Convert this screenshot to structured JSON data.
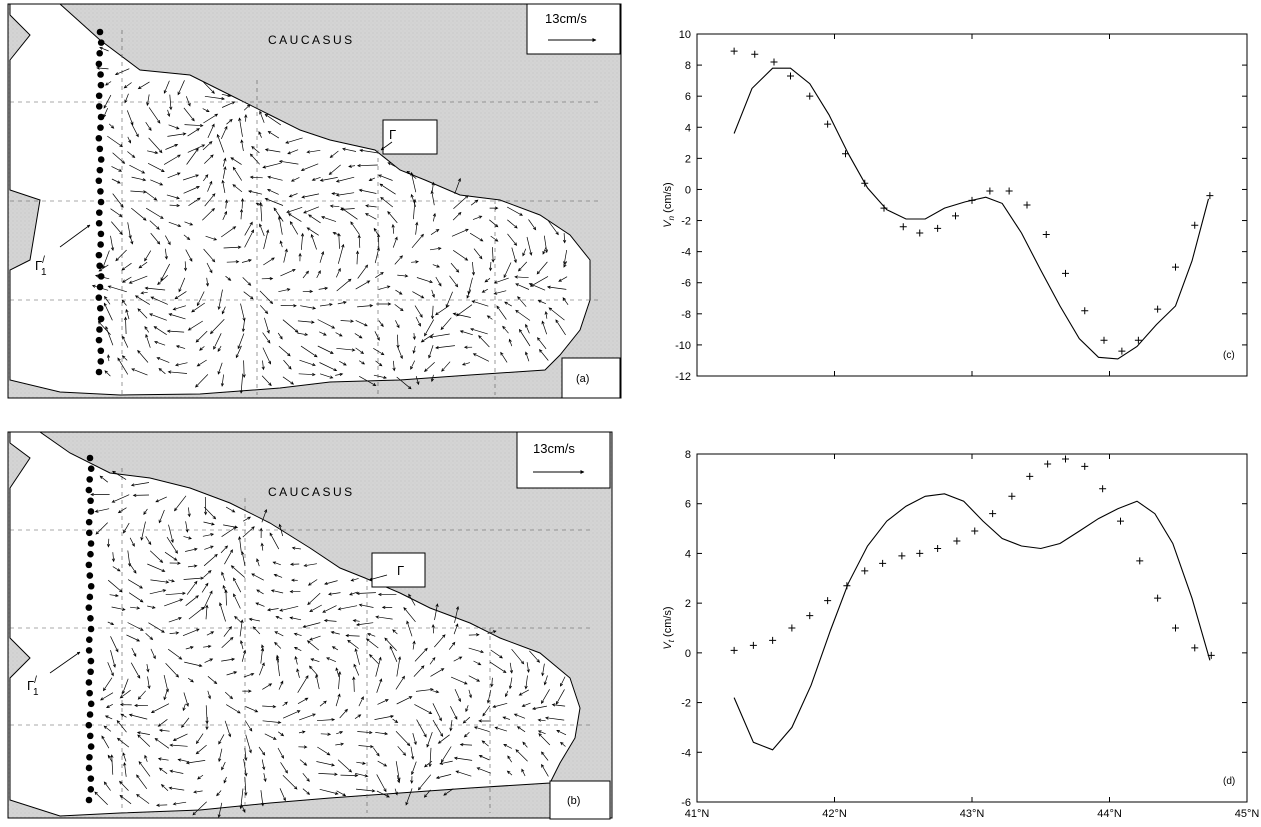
{
  "maps": [
    {
      "panel_label": "(a)",
      "region_label": "CAUCASUS",
      "scale_label": "13cm/s",
      "boundary_label": "Γ",
      "open_boundary_label": "Γ",
      "open_boundary_sup": "/",
      "open_boundary_sub": "1",
      "land_color": "#d4d4d4"
    },
    {
      "panel_label": "(b)",
      "region_label": "CAUCASUS",
      "scale_label": "13cm/s",
      "boundary_label": "Γ",
      "open_boundary_label": "Γ",
      "open_boundary_sup": "/",
      "open_boundary_sub": "1",
      "land_color": "#d4d4d4"
    }
  ],
  "chart_data": [
    {
      "type": "line",
      "panel_label": "(c)",
      "ylabel": "V",
      "ylabel_sub": "n",
      "ylabel_unit": " (cm/s)",
      "xlim": [
        41,
        45
      ],
      "ylim": [
        -12,
        10
      ],
      "yticks": [
        -12,
        -10,
        -8,
        -6,
        -4,
        -2,
        0,
        2,
        4,
        6,
        8,
        10
      ],
      "xticks": [
        41,
        42,
        43,
        44,
        45
      ],
      "xtick_labels": [],
      "series": [
        {
          "style": "line",
          "x": [
            41.27,
            41.4,
            41.55,
            41.68,
            41.82,
            41.96,
            42.1,
            42.24,
            42.38,
            42.52,
            42.66,
            42.8,
            42.95,
            43.1,
            43.22,
            43.36,
            43.5,
            43.64,
            43.78,
            43.92,
            44.06,
            44.2,
            44.34,
            44.48,
            44.6,
            44.72
          ],
          "y": [
            3.6,
            6.5,
            7.8,
            7.8,
            6.8,
            4.8,
            2.3,
            0.1,
            -1.3,
            -1.9,
            -1.9,
            -1.2,
            -0.8,
            -0.5,
            -0.9,
            -2.8,
            -5.2,
            -7.5,
            -9.6,
            -10.8,
            -10.9,
            -10.1,
            -8.7,
            -7.5,
            -4.6,
            -0.6
          ]
        },
        {
          "style": "marker",
          "x": [
            41.27,
            41.42,
            41.56,
            41.68,
            41.82,
            41.95,
            42.08,
            42.22,
            42.36,
            42.5,
            42.62,
            42.75,
            42.88,
            43.0,
            43.13,
            43.27,
            43.4,
            43.54,
            43.68,
            43.82,
            43.96,
            44.09,
            44.21,
            44.35,
            44.48,
            44.62,
            44.73
          ],
          "y": [
            8.9,
            8.7,
            8.2,
            7.3,
            6.0,
            4.2,
            2.3,
            0.4,
            -1.2,
            -2.4,
            -2.8,
            -2.5,
            -1.7,
            -0.7,
            -0.1,
            -0.1,
            -1.0,
            -2.9,
            -5.4,
            -7.8,
            -9.7,
            -10.4,
            -9.7,
            -7.7,
            -5.0,
            -2.3,
            -0.4
          ]
        }
      ]
    },
    {
      "type": "line",
      "panel_label": "(d)",
      "ylabel": "V",
      "ylabel_sub": "t",
      "ylabel_unit": " (cm/s)",
      "xlim": [
        41,
        45
      ],
      "ylim": [
        -6,
        8
      ],
      "yticks": [
        -6,
        -4,
        -2,
        0,
        2,
        4,
        6,
        8
      ],
      "xticks": [
        41,
        42,
        43,
        44,
        45
      ],
      "xtick_labels": [
        "41°N",
        "42°N",
        "43°N",
        "44°N",
        "45°N"
      ],
      "series": [
        {
          "style": "line",
          "x": [
            41.27,
            41.41,
            41.55,
            41.69,
            41.83,
            41.97,
            42.1,
            42.24,
            42.38,
            42.52,
            42.66,
            42.8,
            42.94,
            43.08,
            43.22,
            43.36,
            43.5,
            43.64,
            43.78,
            43.92,
            44.06,
            44.2,
            44.33,
            44.46,
            44.6,
            44.73
          ],
          "y": [
            -1.8,
            -3.6,
            -3.9,
            -3.0,
            -1.3,
            0.9,
            2.8,
            4.3,
            5.3,
            5.9,
            6.3,
            6.4,
            6.1,
            5.3,
            4.6,
            4.3,
            4.2,
            4.4,
            4.9,
            5.4,
            5.8,
            6.1,
            5.6,
            4.4,
            2.2,
            -0.3
          ]
        },
        {
          "style": "marker",
          "x": [
            41.27,
            41.41,
            41.55,
            41.69,
            41.82,
            41.95,
            42.09,
            42.22,
            42.35,
            42.49,
            42.62,
            42.75,
            42.89,
            43.02,
            43.15,
            43.29,
            43.42,
            43.55,
            43.68,
            43.82,
            43.95,
            44.08,
            44.22,
            44.35,
            44.48,
            44.62,
            44.74
          ],
          "y": [
            0.1,
            0.3,
            0.5,
            1.0,
            1.5,
            2.1,
            2.7,
            3.3,
            3.6,
            3.9,
            4.0,
            4.2,
            4.5,
            4.9,
            5.6,
            6.3,
            7.1,
            7.6,
            7.8,
            7.5,
            6.6,
            5.3,
            3.7,
            2.2,
            1.0,
            0.2,
            -0.1
          ]
        }
      ]
    }
  ]
}
